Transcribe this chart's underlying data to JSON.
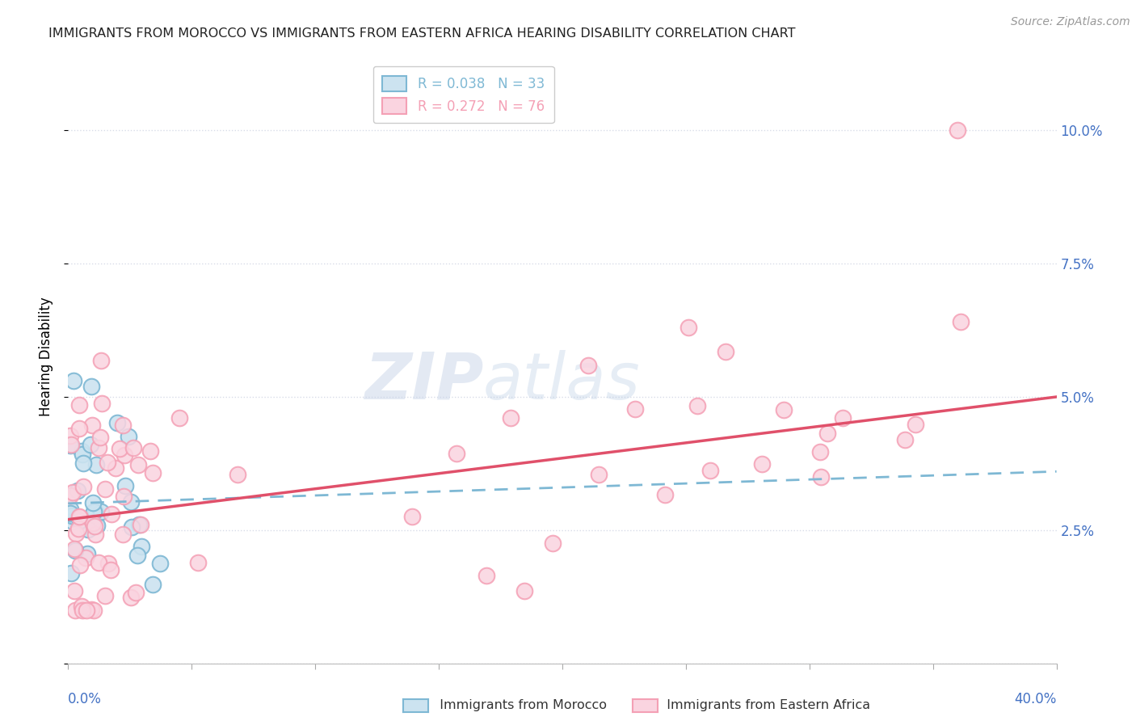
{
  "title": "IMMIGRANTS FROM MOROCCO VS IMMIGRANTS FROM EASTERN AFRICA HEARING DISABILITY CORRELATION CHART",
  "source": "Source: ZipAtlas.com",
  "ylabel": "Hearing Disability",
  "xlim": [
    0.0,
    0.4
  ],
  "ylim": [
    0.0,
    0.115
  ],
  "morocco_color": "#7eb8d4",
  "morocco_line_color": "#7eb8d4",
  "eastern_africa_color": "#f4a0b5",
  "eastern_africa_line_color": "#e0506a",
  "morocco_R": 0.038,
  "morocco_N": 33,
  "eastern_africa_R": 0.272,
  "eastern_africa_N": 76,
  "legend_label_morocco": "Immigrants from Morocco",
  "legend_label_eastern_africa": "Immigrants from Eastern Africa",
  "watermark_zip": "ZIP",
  "watermark_atlas": "atlas",
  "grid_color": "#d8dce8",
  "background_color": "#ffffff",
  "title_fontsize": 11.5,
  "axis_label_fontsize": 12,
  "tick_label_fontsize": 12,
  "legend_fontsize": 12,
  "source_fontsize": 10
}
